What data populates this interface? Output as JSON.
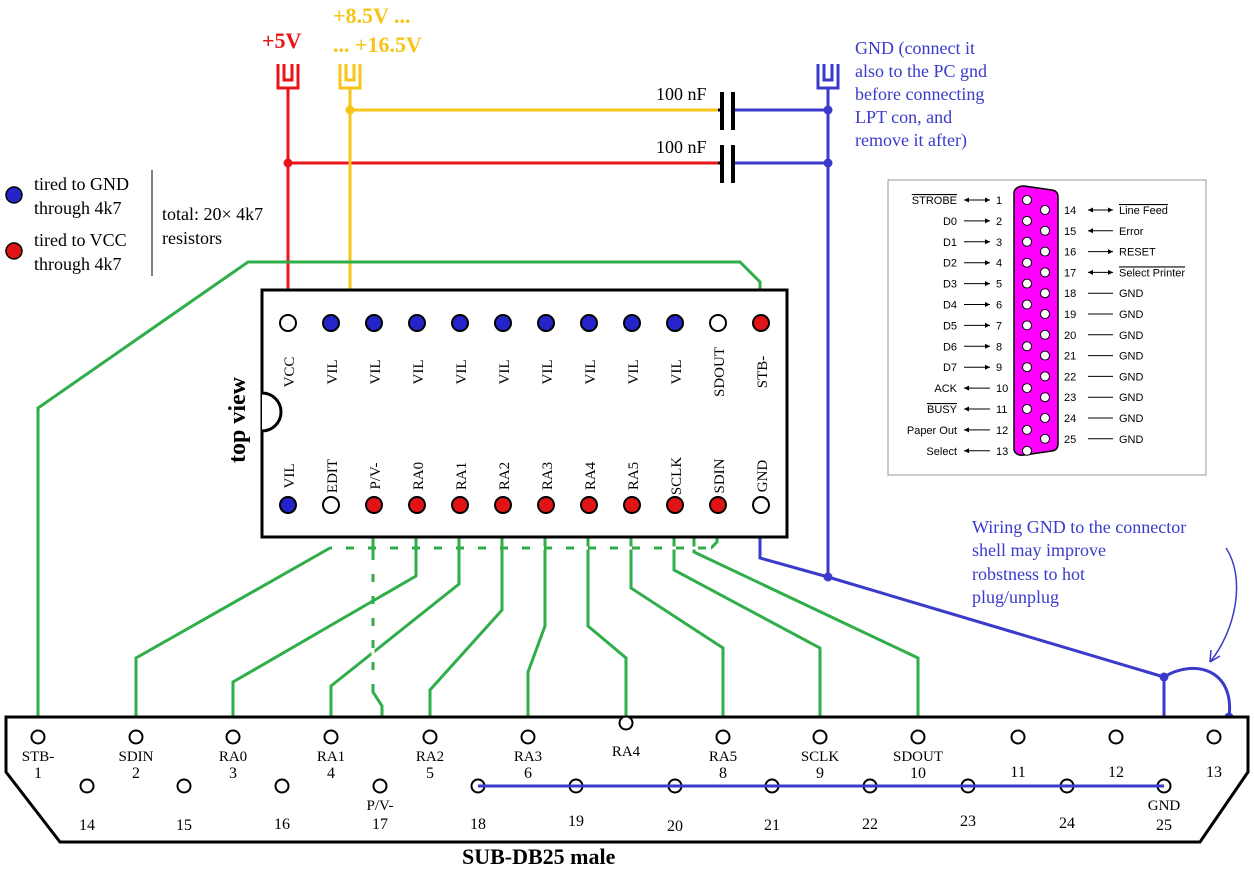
{
  "supply": {
    "vcc_label": "+5V",
    "vpp_label_1": "+8.5V ...",
    "vpp_label_2": "... +16.5V",
    "gnd_note": [
      "GND (connect it",
      "also to the PC gnd",
      "before connecting",
      "LPT con, and",
      "remove it after)"
    ],
    "cap_top": "100 nF",
    "cap_bottom": "100 nF"
  },
  "legend": {
    "blue_1": "tired to GND",
    "blue_2": "through 4k7",
    "red_1": "tired to VCC",
    "red_2": "through 4k7",
    "total_1": "total: 20× 4k7",
    "total_2": "resistors"
  },
  "chip": {
    "view_label": "top view",
    "top_pins": [
      {
        "label": "VCC",
        "fill": "white"
      },
      {
        "label": "VIL",
        "fill": "blue"
      },
      {
        "label": "VIL",
        "fill": "blue"
      },
      {
        "label": "VIL",
        "fill": "blue"
      },
      {
        "label": "VIL",
        "fill": "blue"
      },
      {
        "label": "VIL",
        "fill": "blue"
      },
      {
        "label": "VIL",
        "fill": "blue"
      },
      {
        "label": "VIL",
        "fill": "blue"
      },
      {
        "label": "VIL",
        "fill": "blue"
      },
      {
        "label": "VIL",
        "fill": "blue"
      },
      {
        "label": "SDOUT",
        "fill": "white"
      },
      {
        "label": "STB-",
        "fill": "red"
      }
    ],
    "bottom_pins": [
      {
        "label": "VIL",
        "fill": "blue"
      },
      {
        "label": "EDIT",
        "fill": "white"
      },
      {
        "label": "P/V-",
        "fill": "red"
      },
      {
        "label": "RA0",
        "fill": "red"
      },
      {
        "label": "RA1",
        "fill": "red"
      },
      {
        "label": "RA2",
        "fill": "red"
      },
      {
        "label": "RA3",
        "fill": "red"
      },
      {
        "label": "RA4",
        "fill": "red"
      },
      {
        "label": "RA5",
        "fill": "red"
      },
      {
        "label": "SCLK",
        "fill": "red"
      },
      {
        "label": "SDIN",
        "fill": "red"
      },
      {
        "label": "GND",
        "fill": "white"
      }
    ]
  },
  "pinout": {
    "left": [
      {
        "name": "STROBE",
        "overline": true,
        "dir": "both",
        "num": "1"
      },
      {
        "name": "D0",
        "overline": false,
        "dir": "right",
        "num": "2"
      },
      {
        "name": "D1",
        "overline": false,
        "dir": "right",
        "num": "3"
      },
      {
        "name": "D2",
        "overline": false,
        "dir": "right",
        "num": "4"
      },
      {
        "name": "D3",
        "overline": false,
        "dir": "right",
        "num": "5"
      },
      {
        "name": "D4",
        "overline": false,
        "dir": "right",
        "num": "6"
      },
      {
        "name": "D5",
        "overline": false,
        "dir": "right",
        "num": "7"
      },
      {
        "name": "D6",
        "overline": false,
        "dir": "right",
        "num": "8"
      },
      {
        "name": "D7",
        "overline": false,
        "dir": "right",
        "num": "9"
      },
      {
        "name": "ACK",
        "overline": false,
        "dir": "left",
        "num": "10"
      },
      {
        "name": "BUSY",
        "overline": true,
        "dir": "left",
        "num": "11"
      },
      {
        "name": "Paper Out",
        "overline": false,
        "dir": "left",
        "num": "12"
      },
      {
        "name": "Select",
        "overline": false,
        "dir": "left",
        "num": "13"
      }
    ],
    "right": [
      {
        "name": "Line Feed",
        "overline": true,
        "dir": "both",
        "num": "14"
      },
      {
        "name": "Error",
        "overline": false,
        "dir": "left",
        "num": "15"
      },
      {
        "name": "RESET",
        "overline": false,
        "dir": "right",
        "num": "16"
      },
      {
        "name": "Select Printer",
        "overline": true,
        "dir": "both",
        "num": "17"
      },
      {
        "name": "GND",
        "overline": false,
        "dir": "none",
        "num": "18"
      },
      {
        "name": "GND",
        "overline": false,
        "dir": "none",
        "num": "19"
      },
      {
        "name": "GND",
        "overline": false,
        "dir": "none",
        "num": "20"
      },
      {
        "name": "GND",
        "overline": false,
        "dir": "none",
        "num": "21"
      },
      {
        "name": "GND",
        "overline": false,
        "dir": "none",
        "num": "22"
      },
      {
        "name": "GND",
        "overline": false,
        "dir": "none",
        "num": "23"
      },
      {
        "name": "GND",
        "overline": false,
        "dir": "none",
        "num": "24"
      },
      {
        "name": "GND",
        "overline": false,
        "dir": "none",
        "num": "25"
      }
    ]
  },
  "note_hotplug": [
    "Wiring GND to the connector",
    "shell may improve",
    "robstness to hot",
    "plug/unplug"
  ],
  "connector": {
    "title": "SUB-DB25 male",
    "top_row": [
      {
        "name": "STB-",
        "num": "1"
      },
      {
        "name": "SDIN",
        "num": "2"
      },
      {
        "name": "RA0",
        "num": "3"
      },
      {
        "name": "RA1",
        "num": "4"
      },
      {
        "name": "RA2",
        "num": "5"
      },
      {
        "name": "RA3",
        "num": "6"
      },
      {
        "name": "RA4",
        "num": ""
      },
      {
        "name": "RA5",
        "num": "8"
      },
      {
        "name": "SCLK",
        "num": "9"
      },
      {
        "name": "SDOUT",
        "num": "10"
      },
      {
        "name": "",
        "num": "11"
      },
      {
        "name": "",
        "num": "12"
      },
      {
        "name": "",
        "num": "13"
      }
    ],
    "bottom_row": [
      {
        "name": "",
        "num": "14"
      },
      {
        "name": "",
        "num": "15"
      },
      {
        "name": "",
        "num": "16"
      },
      {
        "name": "P/V-",
        "num": "17"
      },
      {
        "name": "",
        "num": "18"
      },
      {
        "name": "",
        "num": "19"
      },
      {
        "name": "",
        "num": "20"
      },
      {
        "name": "",
        "num": "21"
      },
      {
        "name": "",
        "num": "22"
      },
      {
        "name": "",
        "num": "23"
      },
      {
        "name": "",
        "num": "24"
      },
      {
        "name": "GND",
        "num": "25"
      }
    ]
  },
  "colors": {
    "red": "#e8141a",
    "yellow": "#f5c518",
    "blue": "#3a3acb",
    "green": "#2fae4a",
    "magenta": "#ff00ff",
    "pin_blue": "#2424c8",
    "pin_red": "#e01414",
    "black": "#000000"
  }
}
